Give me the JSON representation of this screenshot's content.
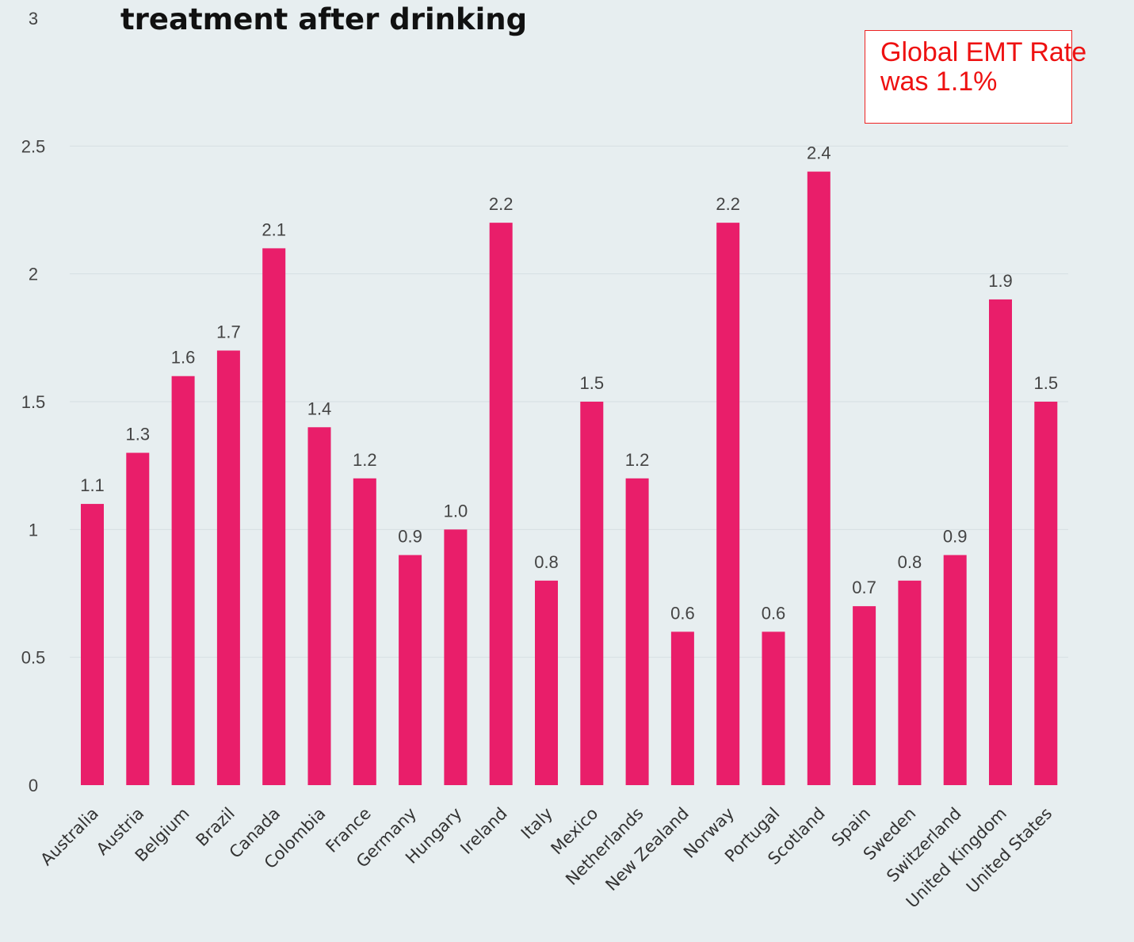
{
  "chart_data": {
    "type": "bar",
    "title": "treatment after drinking",
    "categories": [
      "Australia",
      "Austria",
      "Belgium",
      "Brazil",
      "Canada",
      "Colombia",
      "France",
      "Germany",
      "Hungary",
      "Ireland",
      "Italy",
      "Mexico",
      "Netherlands",
      "New Zealand",
      "Norway",
      "Portugal",
      "Scotland",
      "Spain",
      "Sweden",
      "Switzerland",
      "United Kingdom",
      "United States"
    ],
    "values": [
      1.1,
      1.3,
      1.6,
      1.7,
      2.1,
      1.4,
      1.2,
      0.9,
      1.0,
      2.2,
      0.8,
      1.5,
      1.2,
      0.6,
      2.2,
      0.6,
      2.4,
      0.7,
      0.8,
      0.9,
      1.9,
      1.5
    ],
    "data_labels": [
      "1.1",
      "1.3",
      "1.6",
      "1.7",
      "2.1",
      "1.4",
      "1.2",
      "0.9",
      "1.0",
      "2.2",
      "0.8",
      "1.5",
      "1.2",
      "0.6",
      "2.2",
      "0.6",
      "2.4",
      "0.7",
      "0.8",
      "0.9",
      "1.9",
      "1.5"
    ],
    "ylim": [
      0,
      3
    ],
    "yticks": [
      "0",
      "0.5",
      "1",
      "1.5",
      "2",
      "2.5",
      "3"
    ],
    "grid": true,
    "bar_color": "#e91e6a",
    "annotation": "Global EMT Rate was 1.1%"
  }
}
